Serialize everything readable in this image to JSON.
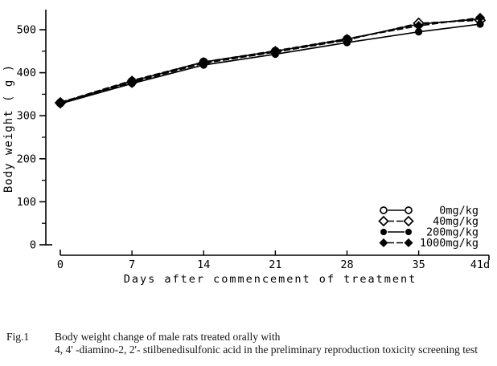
{
  "figure": {
    "caption_label": "Fig.1",
    "caption_line1": "Body weight change of male rats treated orally with",
    "caption_line2": "4, 4' -diamino-2, 2'- stilbenedisulfonic acid in the preliminary reproduction toxicity screening test"
  },
  "colors": {
    "ink": "#000000",
    "paper": "#ffffff"
  },
  "chart_data": {
    "type": "line",
    "title": "",
    "xlabel": "Days after commencement of treatment",
    "ylabel": "Body weight ( g )",
    "x": [
      0,
      7,
      14,
      21,
      28,
      35,
      41
    ],
    "x_tick_labels": [
      "0",
      "7",
      "14",
      "21",
      "28",
      "35",
      "41d"
    ],
    "y_ticks": [
      0,
      100,
      200,
      300,
      400,
      500
    ],
    "y_minor_step": 50,
    "xlim": [
      0,
      41
    ],
    "ylim": [
      0,
      550
    ],
    "grid": false,
    "legend_position": "lower right",
    "series": [
      {
        "name": "0mg/kg",
        "marker": "open-circle",
        "line": "solid",
        "values": [
          330,
          380,
          425,
          450,
          478,
          513,
          525
        ]
      },
      {
        "name": "40mg/kg",
        "marker": "open-diamond",
        "line": "dashed",
        "values": [
          330,
          378,
          422,
          448,
          476,
          515,
          522
        ]
      },
      {
        "name": "200mg/kg",
        "marker": "filled-circle",
        "line": "solid",
        "values": [
          328,
          375,
          418,
          443,
          470,
          495,
          513
        ]
      },
      {
        "name": "1000mg/kg",
        "marker": "filled-diamond",
        "line": "dashed",
        "values": [
          331,
          382,
          425,
          451,
          479,
          509,
          528
        ]
      }
    ]
  }
}
